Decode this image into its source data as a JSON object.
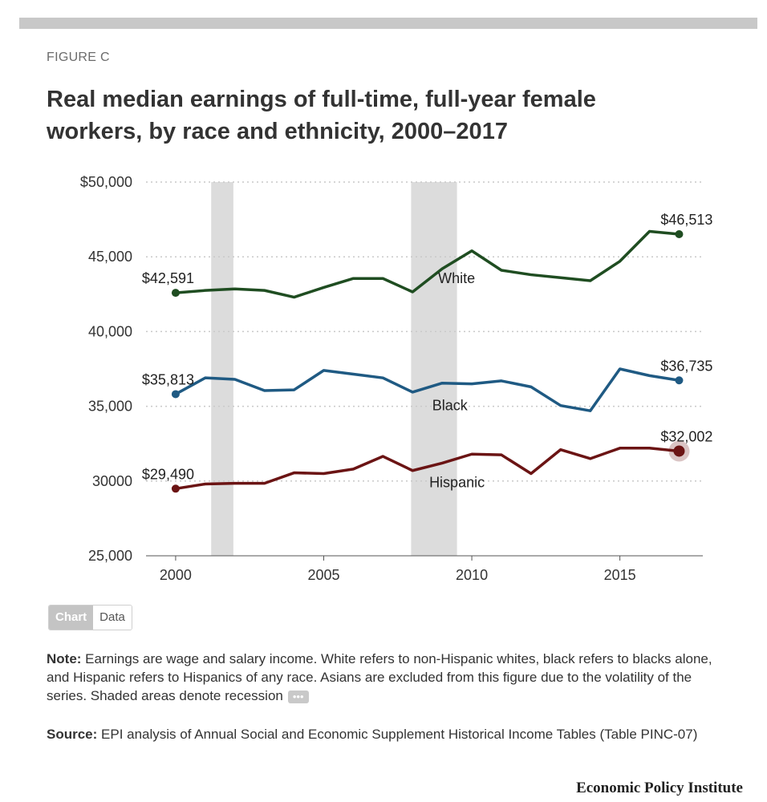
{
  "figure_label": "FIGURE C",
  "title_lines": [
    "Real median earnings of full-time, full-year female",
    "workers, by race and ethnicity, 2000–2017"
  ],
  "chart_data": {
    "type": "line",
    "title": "Real median earnings of full-time, full-year female workers, by race and ethnicity, 2000–2017",
    "xlabel": "",
    "ylabel": "",
    "x": [
      2000,
      2001,
      2002,
      2003,
      2004,
      2005,
      2006,
      2007,
      2008,
      2009,
      2010,
      2011,
      2012,
      2013,
      2014,
      2015,
      2016,
      2017
    ],
    "xlim": [
      1999,
      2017.8
    ],
    "ylim": [
      25000,
      50000
    ],
    "xticks": [
      2000,
      2005,
      2010,
      2015
    ],
    "xtick_labels": [
      "2000",
      "2005",
      "2010",
      "2015"
    ],
    "yticks": [
      25000,
      30000,
      35000,
      40000,
      45000,
      50000
    ],
    "ytick_labels": [
      "25,000",
      "30000",
      "35,000",
      "40,000",
      "45,000",
      "$50,000"
    ],
    "grid": "horizontal dotted",
    "recessions": [
      [
        2001.2,
        2001.95
      ],
      [
        2007.95,
        2009.5
      ]
    ],
    "series": [
      {
        "name": "White",
        "color": "#1f4d21",
        "values": [
          42591,
          42750,
          42850,
          42750,
          42300,
          42950,
          43550,
          43550,
          42650,
          44200,
          45400,
          44100,
          43800,
          43600,
          43400,
          44700,
          46700,
          46513
        ],
        "start_label": "$42,591",
        "end_label": "$46,513"
      },
      {
        "name": "Black",
        "color": "#1f5a83",
        "values": [
          35813,
          36900,
          36800,
          36050,
          36100,
          37400,
          37150,
          36900,
          35950,
          36550,
          36500,
          36700,
          36300,
          35050,
          34700,
          37500,
          37050,
          36735
        ],
        "start_label": "$35,813",
        "end_label": "$36,735"
      },
      {
        "name": "Hispanic",
        "color": "#6b1414",
        "values": [
          29490,
          29800,
          29850,
          29850,
          30550,
          30500,
          30800,
          31650,
          30700,
          31200,
          31800,
          31750,
          30500,
          32100,
          31500,
          32200,
          32200,
          32002
        ],
        "start_label": "$29,490",
        "end_label": "$32,002"
      }
    ]
  },
  "toggle": {
    "chart_label": "Chart",
    "data_label": "Data"
  },
  "note": {
    "label": "Note:",
    "text": " Earnings are wage and salary income. White refers to non-Hispanic whites, black refers to blacks alone, and Hispanic refers to Hispanics of any race. Asians are excluded from this figure due to the volatility of the series. Shaded areas denote recession",
    "more": "•••"
  },
  "source": {
    "label": "Source:",
    "text": " EPI analysis of Annual Social and Economic Supplement Historical Income Tables (Table PINC-07)"
  },
  "brand": "Economic Policy Institute"
}
